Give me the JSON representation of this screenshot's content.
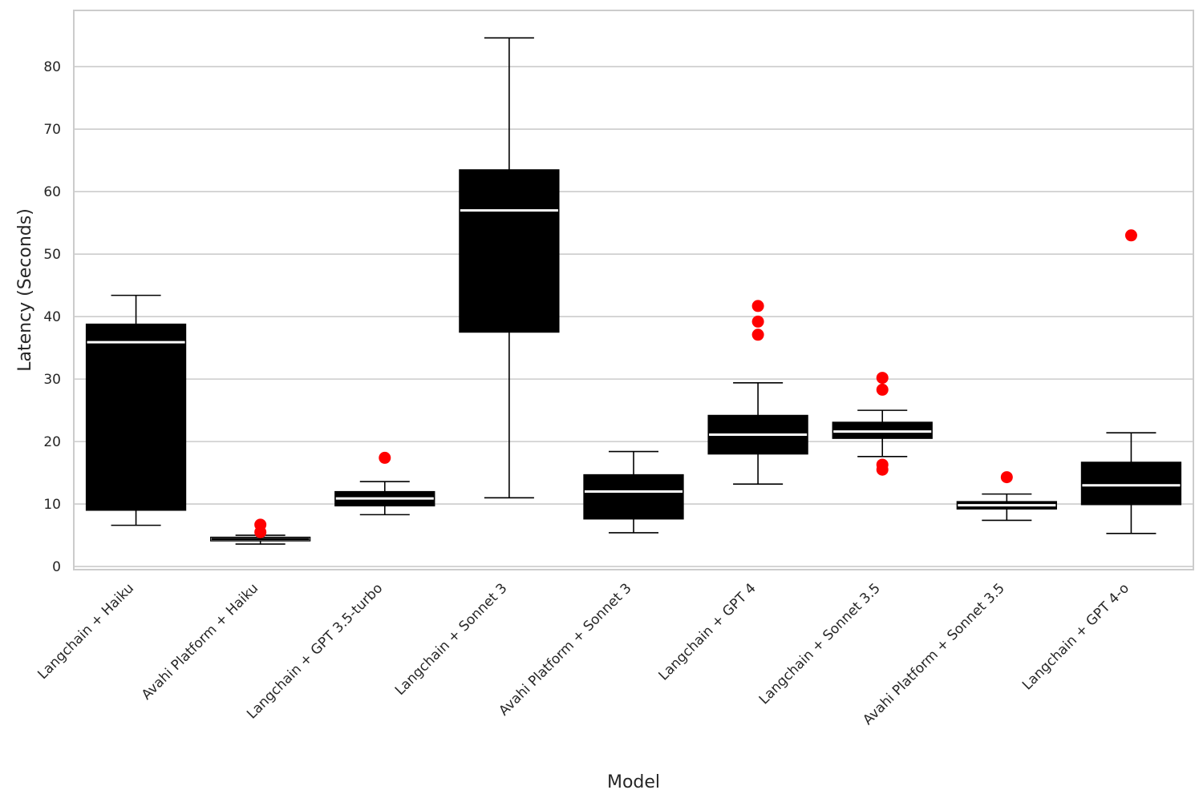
{
  "chart_data": {
    "type": "box",
    "xlabel": "Model",
    "ylabel": "Latency (Seconds)",
    "ylim": [
      -0.5,
      89
    ],
    "y_ticks": [
      0,
      10,
      20,
      30,
      40,
      50,
      60,
      70,
      80
    ],
    "grid": "horizontal",
    "colors": {
      "box_fill": "#000000",
      "median": "#ffffff",
      "whisker": "#000000",
      "outlier": "#ff0000",
      "grid": "#cccccc",
      "frame": "#cccccc"
    },
    "categories": [
      "Langchain + Haiku",
      "Avahi Platform + Haiku",
      "Langchain + GPT 3.5-turbo",
      "Langchain + Sonnet 3",
      "Avahi Platform + Sonnet 3",
      "Langchain + GPT 4",
      "Langchain + Sonnet 3.5",
      "Avahi Platform + Sonnet 3.5",
      "Langchain + GPT 4-o"
    ],
    "boxes": [
      {
        "whisker_low": 6.6,
        "q1": 9.0,
        "median": 35.9,
        "q3": 38.8,
        "whisker_high": 43.4,
        "outliers": []
      },
      {
        "whisker_low": 3.6,
        "q1": 4.1,
        "median": 4.4,
        "q3": 4.7,
        "whisker_high": 5.0,
        "outliers": [
          5.5,
          6.7
        ],
        "box_fill": "#ffffff",
        "median_color": "#000000"
      },
      {
        "whisker_low": 8.3,
        "q1": 9.7,
        "median": 10.9,
        "q3": 12.0,
        "whisker_high": 13.6,
        "outliers": [
          17.4
        ]
      },
      {
        "whisker_low": 11.0,
        "q1": 37.5,
        "median": 57.0,
        "q3": 63.5,
        "whisker_high": 84.6,
        "outliers": []
      },
      {
        "whisker_low": 5.4,
        "q1": 7.6,
        "median": 12.0,
        "q3": 14.7,
        "whisker_high": 18.4,
        "outliers": []
      },
      {
        "whisker_low": 13.2,
        "q1": 18.0,
        "median": 21.1,
        "q3": 24.2,
        "whisker_high": 29.4,
        "outliers": [
          37.1,
          39.2,
          41.7
        ]
      },
      {
        "whisker_low": 17.6,
        "q1": 20.5,
        "median": 21.6,
        "q3": 23.1,
        "whisker_high": 25.0,
        "outliers": [
          15.5,
          16.3,
          28.3,
          30.2
        ]
      },
      {
        "whisker_low": 7.4,
        "q1": 9.2,
        "median": 9.8,
        "q3": 10.4,
        "whisker_high": 11.6,
        "outliers": [
          14.3
        ]
      },
      {
        "whisker_low": 5.3,
        "q1": 9.9,
        "median": 13.0,
        "q3": 16.7,
        "whisker_high": 21.4,
        "outliers": [
          53.0
        ]
      }
    ]
  }
}
